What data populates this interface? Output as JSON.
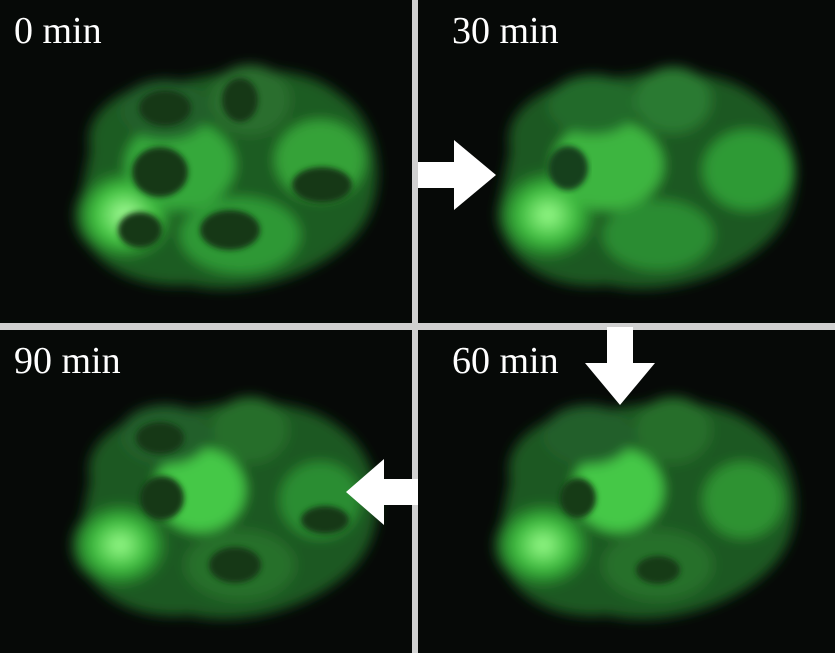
{
  "panels": [
    {
      "id": "t0",
      "label": "0 min"
    },
    {
      "id": "t30",
      "label": "30 min"
    },
    {
      "id": "t60",
      "label": "60 min"
    },
    {
      "id": "t90",
      "label": "90 min"
    }
  ],
  "colors": {
    "background": "#060907",
    "cell_dim": "#1f5a26",
    "cell_bright": "#8dff8a",
    "border": "#d0d0d0",
    "text": "#ffffff"
  },
  "icons": [
    "arrow-right-icon",
    "arrow-down-icon",
    "arrow-left-icon"
  ]
}
